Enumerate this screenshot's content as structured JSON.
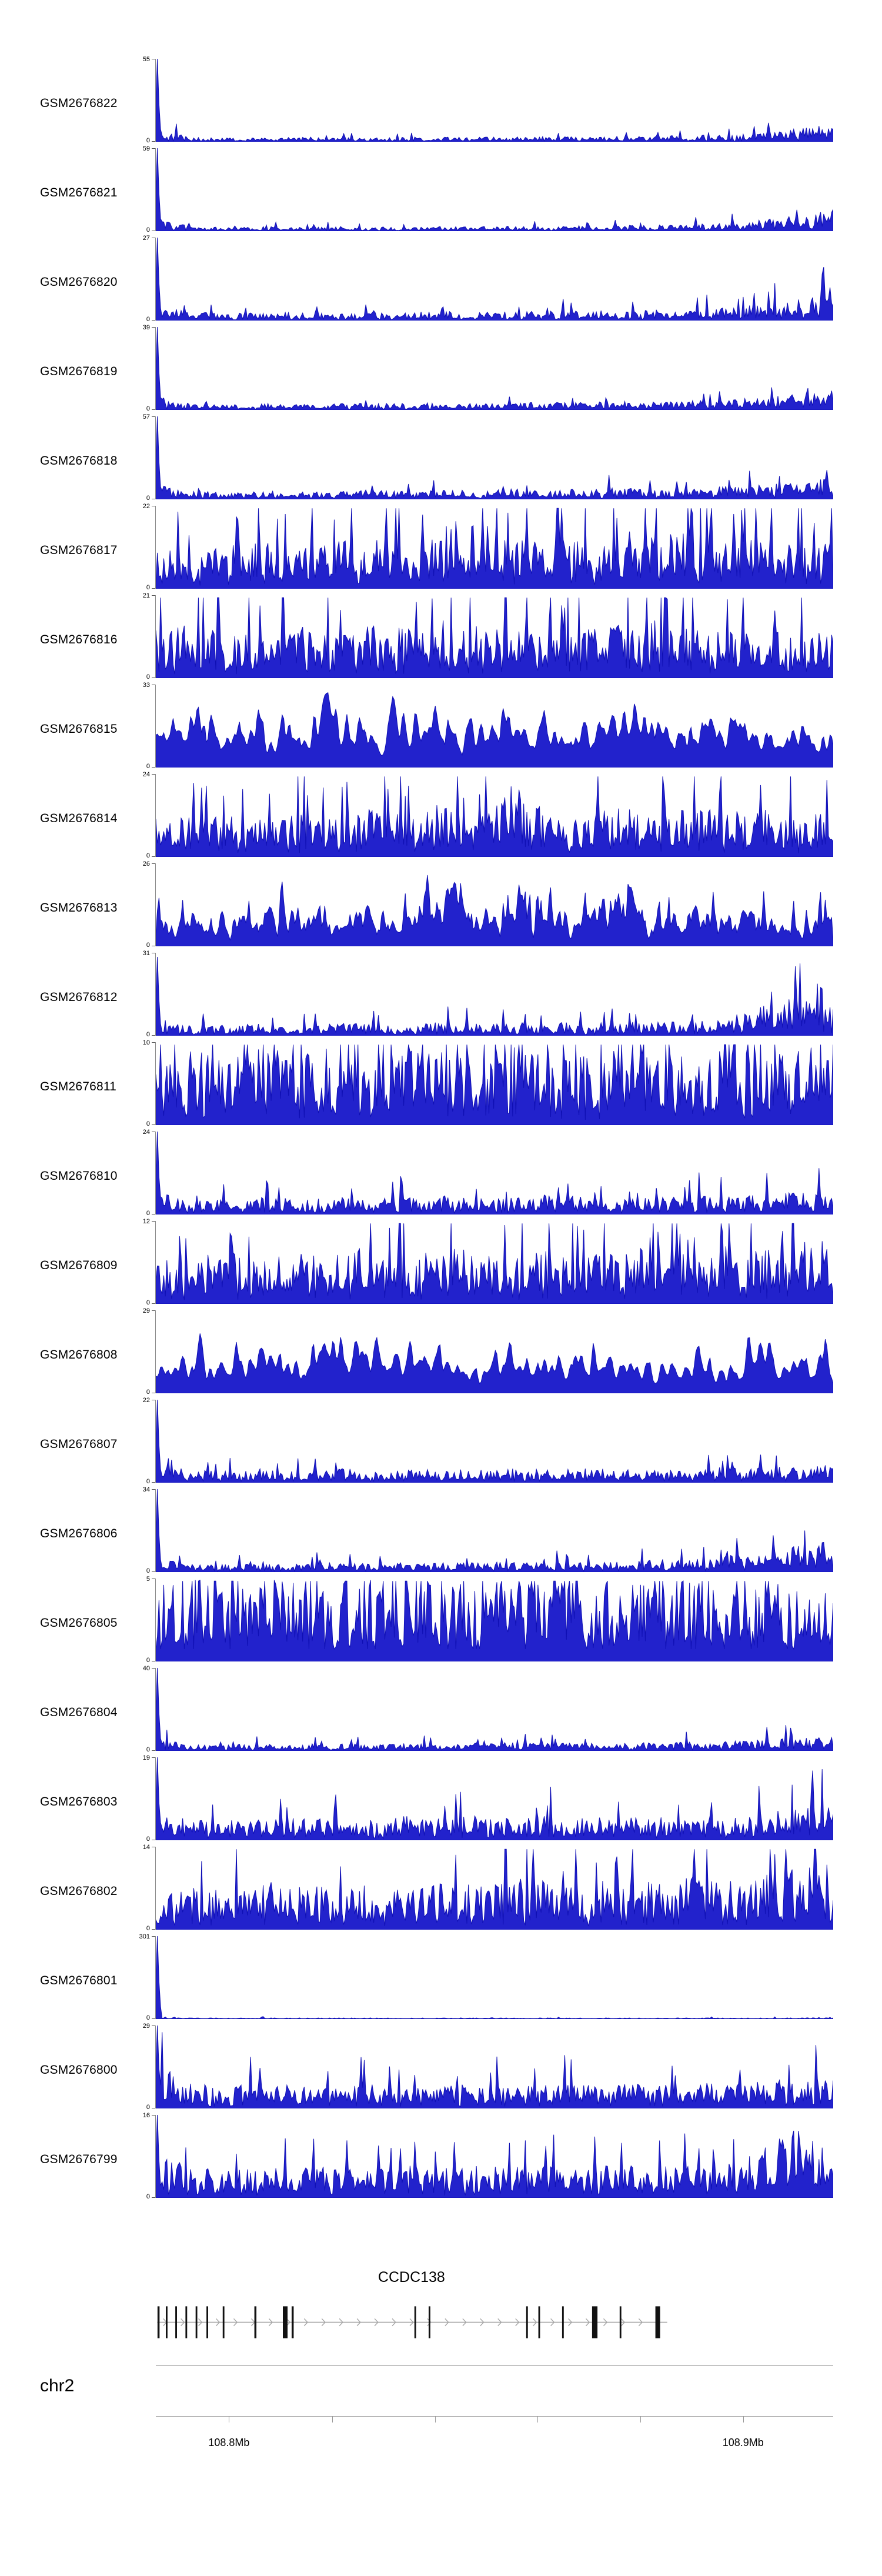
{
  "page": {
    "background": "#ffffff"
  },
  "chart_data": {
    "type": "area",
    "title": "",
    "layout": {
      "legend": "none",
      "grid": false
    },
    "track_color": "#2222cc",
    "track_stroke": "#0f0fb4",
    "y_zero_label": "0",
    "tracks": [
      {
        "label": "GSM2676822",
        "ymax": 55,
        "ymin": 0,
        "seed": 101,
        "left_spike": 1,
        "spike_prob": 0.05,
        "smooth": 0,
        "floor": 0.008,
        "envelope": [
          0.14,
          0.05,
          0.04,
          0.04,
          0.05,
          0.05,
          0.04,
          0.05,
          0.05,
          0.05,
          0.05,
          0.06,
          0.05,
          0.06,
          0.06,
          0.07,
          0.08,
          0.1,
          0.14,
          0.19
        ]
      },
      {
        "label": "GSM2676821",
        "ymax": 59,
        "ymin": 0,
        "seed": 102,
        "left_spike": 1,
        "spike_prob": 0.05,
        "smooth": 0,
        "floor": 0.008,
        "envelope": [
          0.13,
          0.05,
          0.04,
          0.05,
          0.04,
          0.05,
          0.05,
          0.04,
          0.05,
          0.05,
          0.06,
          0.05,
          0.06,
          0.06,
          0.07,
          0.07,
          0.09,
          0.12,
          0.17,
          0.23
        ]
      },
      {
        "label": "GSM2676820",
        "ymax": 27,
        "ymin": 0,
        "seed": 103,
        "left_spike": 1,
        "spike_prob": 0.06,
        "smooth": 0,
        "floor": 0.01,
        "envelope": [
          0.18,
          0.09,
          0.08,
          0.08,
          0.09,
          0.09,
          0.08,
          0.09,
          0.1,
          0.09,
          0.1,
          0.1,
          0.11,
          0.1,
          0.11,
          0.12,
          0.14,
          0.17,
          0.22,
          0.28
        ]
      },
      {
        "label": "GSM2676819",
        "ymax": 39,
        "ymin": 0,
        "seed": 104,
        "left_spike": 1,
        "spike_prob": 0.05,
        "smooth": 0,
        "floor": 0.008,
        "envelope": [
          0.15,
          0.07,
          0.06,
          0.07,
          0.06,
          0.07,
          0.07,
          0.07,
          0.08,
          0.07,
          0.08,
          0.08,
          0.08,
          0.09,
          0.09,
          0.1,
          0.11,
          0.13,
          0.17,
          0.21
        ]
      },
      {
        "label": "GSM2676818",
        "ymax": 57,
        "ymin": 0,
        "seed": 105,
        "left_spike": 1,
        "spike_prob": 0.06,
        "smooth": 0,
        "floor": 0.01,
        "envelope": [
          0.16,
          0.09,
          0.08,
          0.09,
          0.08,
          0.09,
          0.1,
          0.09,
          0.1,
          0.1,
          0.11,
          0.1,
          0.11,
          0.12,
          0.11,
          0.12,
          0.14,
          0.16,
          0.19,
          0.23
        ]
      },
      {
        "label": "GSM2676817",
        "ymax": 22,
        "ymin": 0,
        "seed": 106,
        "left_spike": 0,
        "spike_prob": 0.1,
        "smooth": 0,
        "floor": 0.02,
        "envelope": [
          0.45,
          0.4,
          0.46,
          0.5,
          0.42,
          0.5,
          0.56,
          0.46,
          0.62,
          0.88,
          0.56,
          0.66,
          0.5,
          0.46,
          0.56,
          0.6,
          0.5,
          0.56,
          0.5,
          0.56
        ]
      },
      {
        "label": "GSM2676816",
        "ymax": 21,
        "ymin": 0,
        "seed": 107,
        "left_spike": 0,
        "spike_prob": 0.1,
        "smooth": 0,
        "floor": 0.02,
        "envelope": [
          0.52,
          0.56,
          0.46,
          0.52,
          0.62,
          0.46,
          0.56,
          0.52,
          0.46,
          0.56,
          0.52,
          0.62,
          0.52,
          0.56,
          0.66,
          0.52,
          0.56,
          0.46,
          0.56,
          0.52
        ]
      },
      {
        "label": "GSM2676815",
        "ymax": 33,
        "ymin": 0,
        "seed": 108,
        "left_spike": 0,
        "spike_prob": 0.08,
        "smooth": 2,
        "floor": 0.05,
        "envelope": [
          0.62,
          0.72,
          0.56,
          0.66,
          0.62,
          0.76,
          0.62,
          0.56,
          0.66,
          0.62,
          0.72,
          0.62,
          0.66,
          0.56,
          0.72,
          0.62,
          0.66,
          0.62,
          0.56,
          0.62
        ]
      },
      {
        "label": "GSM2676814",
        "ymax": 24,
        "ymin": 0,
        "seed": 109,
        "left_spike": 0,
        "spike_prob": 0.08,
        "smooth": 0,
        "floor": 0.02,
        "envelope": [
          0.42,
          0.46,
          0.42,
          0.52,
          0.46,
          0.42,
          0.52,
          0.46,
          0.56,
          0.46,
          0.85,
          0.52,
          0.46,
          0.52,
          0.46,
          0.56,
          0.46,
          0.52,
          0.46,
          0.52
        ]
      },
      {
        "label": "GSM2676813",
        "ymax": 26,
        "ymin": 0,
        "seed": 110,
        "left_spike": 0,
        "spike_prob": 0.09,
        "smooth": 1,
        "floor": 0.04,
        "envelope": [
          0.38,
          0.42,
          0.46,
          0.42,
          0.52,
          0.42,
          0.46,
          0.42,
          0.88,
          0.46,
          0.42,
          0.52,
          0.46,
          0.76,
          0.42,
          0.46,
          0.42,
          0.46,
          0.42,
          0.46
        ]
      },
      {
        "label": "GSM2676812",
        "ymax": 31,
        "ymin": 0,
        "seed": 111,
        "left_spike": 0.95,
        "spike_prob": 0.06,
        "smooth": 0,
        "floor": 0.012,
        "envelope": [
          0.2,
          0.11,
          0.11,
          0.13,
          0.11,
          0.13,
          0.13,
          0.11,
          0.15,
          0.13,
          0.13,
          0.15,
          0.13,
          0.15,
          0.14,
          0.16,
          0.19,
          0.32,
          0.42,
          0.3
        ]
      },
      {
        "label": "GSM2676811",
        "ymax": 10,
        "ymin": 0,
        "seed": 112,
        "left_spike": 0,
        "spike_prob": 0.12,
        "smooth": 0,
        "floor": 0.06,
        "envelope": [
          0.76,
          0.82,
          0.72,
          0.86,
          0.76,
          0.82,
          0.72,
          0.76,
          0.86,
          0.72,
          0.82,
          0.76,
          0.72,
          0.82,
          0.76,
          0.72,
          0.82,
          0.78,
          0.86,
          0.92
        ]
      },
      {
        "label": "GSM2676810",
        "ymax": 24,
        "ymin": 0,
        "seed": 113,
        "left_spike": 1,
        "spike_prob": 0.06,
        "smooth": 0,
        "floor": 0.015,
        "envelope": [
          0.24,
          0.16,
          0.16,
          0.19,
          0.16,
          0.19,
          0.16,
          0.19,
          0.21,
          0.16,
          0.19,
          0.21,
          0.19,
          0.16,
          0.19,
          0.21,
          0.19,
          0.21,
          0.23,
          0.26
        ]
      },
      {
        "label": "GSM2676809",
        "ymax": 12,
        "ymin": 0,
        "seed": 114,
        "left_spike": 0,
        "spike_prob": 0.1,
        "smooth": 0,
        "floor": 0.03,
        "envelope": [
          0.46,
          0.52,
          0.56,
          0.46,
          0.56,
          0.52,
          0.62,
          0.52,
          0.56,
          0.62,
          0.52,
          0.56,
          0.52,
          0.62,
          0.56,
          0.52,
          0.62,
          0.56,
          0.66,
          0.72
        ]
      },
      {
        "label": "GSM2676808",
        "ymax": 29,
        "ymin": 0,
        "seed": 115,
        "left_spike": 0,
        "spike_prob": 0.08,
        "smooth": 2,
        "floor": 0.04,
        "envelope": [
          0.42,
          0.52,
          0.46,
          0.56,
          0.52,
          0.56,
          0.46,
          0.56,
          0.52,
          0.46,
          0.56,
          0.52,
          0.56,
          0.46,
          0.52,
          0.42,
          0.36,
          0.76,
          0.56,
          0.46
        ]
      },
      {
        "label": "GSM2676807",
        "ymax": 22,
        "ymin": 0,
        "seed": 116,
        "left_spike": 1,
        "spike_prob": 0.05,
        "smooth": 0,
        "floor": 0.012,
        "envelope": [
          0.2,
          0.13,
          0.13,
          0.15,
          0.13,
          0.15,
          0.14,
          0.13,
          0.16,
          0.14,
          0.15,
          0.14,
          0.16,
          0.15,
          0.16,
          0.15,
          0.17,
          0.16,
          0.18,
          0.19
        ]
      },
      {
        "label": "GSM2676806",
        "ymax": 34,
        "ymin": 0,
        "seed": 117,
        "left_spike": 1,
        "spike_prob": 0.05,
        "smooth": 0,
        "floor": 0.01,
        "envelope": [
          0.15,
          0.09,
          0.08,
          0.09,
          0.09,
          0.1,
          0.09,
          0.1,
          0.1,
          0.1,
          0.11,
          0.1,
          0.12,
          0.11,
          0.13,
          0.15,
          0.17,
          0.22,
          0.28,
          0.33
        ]
      },
      {
        "label": "GSM2676805",
        "ymax": 5,
        "ymin": 0,
        "seed": 118,
        "left_spike": 0,
        "spike_prob": 0.12,
        "smooth": 0,
        "floor": 0.15,
        "envelope": [
          0.82,
          0.88,
          0.82,
          0.88,
          0.85,
          0.82,
          0.88,
          0.85,
          0.82,
          0.88,
          0.82,
          0.85,
          0.88,
          0.82,
          0.85,
          0.88,
          0.82,
          0.85,
          0.82,
          0.88
        ]
      },
      {
        "label": "GSM2676804",
        "ymax": 40,
        "ymin": 0,
        "seed": 119,
        "left_spike": 1,
        "spike_prob": 0.05,
        "smooth": 0,
        "floor": 0.008,
        "envelope": [
          0.13,
          0.07,
          0.07,
          0.07,
          0.07,
          0.08,
          0.07,
          0.08,
          0.07,
          0.08,
          0.09,
          0.08,
          0.09,
          0.08,
          0.09,
          0.1,
          0.1,
          0.12,
          0.13,
          0.16
        ]
      },
      {
        "label": "GSM2676803",
        "ymax": 19,
        "ymin": 0,
        "seed": 120,
        "left_spike": 1,
        "spike_prob": 0.06,
        "smooth": 0,
        "floor": 0.02,
        "envelope": [
          0.3,
          0.21,
          0.23,
          0.21,
          0.26,
          0.23,
          0.21,
          0.26,
          0.23,
          0.26,
          0.23,
          0.26,
          0.25,
          0.23,
          0.26,
          0.25,
          0.27,
          0.29,
          0.33,
          0.36
        ]
      },
      {
        "label": "GSM2676802",
        "ymax": 14,
        "ymin": 0,
        "seed": 121,
        "left_spike": 0,
        "spike_prob": 0.09,
        "smooth": 0,
        "floor": 0.03,
        "envelope": [
          0.42,
          0.46,
          0.42,
          0.52,
          0.46,
          0.52,
          0.46,
          0.42,
          0.52,
          0.46,
          0.56,
          0.52,
          0.46,
          0.56,
          0.52,
          0.56,
          0.52,
          0.62,
          0.66,
          0.72
        ]
      },
      {
        "label": "GSM2676801",
        "ymax": 301,
        "ymin": 0,
        "seed": 122,
        "left_spike": 1,
        "spike_prob": 0.02,
        "smooth": 0,
        "floor": 0.006,
        "envelope": [
          0.03,
          0.012,
          0.012,
          0.012,
          0.012,
          0.012,
          0.012,
          0.012,
          0.012,
          0.012,
          0.012,
          0.012,
          0.012,
          0.012,
          0.012,
          0.012,
          0.012,
          0.012,
          0.012,
          0.02
        ]
      },
      {
        "label": "GSM2676800",
        "ymax": 29,
        "ymin": 0,
        "seed": 123,
        "left_spike": 1,
        "spike_prob": 0.07,
        "smooth": 0,
        "floor": 0.02,
        "envelope": [
          0.48,
          0.3,
          0.24,
          0.26,
          0.24,
          0.26,
          0.25,
          0.24,
          0.27,
          0.25,
          0.26,
          0.25,
          0.27,
          0.26,
          0.25,
          0.27,
          0.26,
          0.29,
          0.31,
          0.33
        ]
      },
      {
        "label": "GSM2676799",
        "ymax": 16,
        "ymin": 0,
        "seed": 124,
        "left_spike": 1,
        "spike_prob": 0.08,
        "smooth": 0,
        "floor": 0.02,
        "envelope": [
          0.48,
          0.32,
          0.32,
          0.3,
          0.34,
          0.32,
          0.3,
          0.34,
          0.32,
          0.34,
          0.32,
          0.34,
          0.32,
          0.36,
          0.34,
          0.36,
          0.38,
          0.58,
          0.72,
          0.55
        ]
      }
    ],
    "gene_track": {
      "name": "CCDC138",
      "line_end": 0.755,
      "strand": "+",
      "exons": [
        {
          "pos": 0.004,
          "w": 3
        },
        {
          "pos": 0.016,
          "w": 2.5
        },
        {
          "pos": 0.03,
          "w": 2.5
        },
        {
          "pos": 0.045,
          "w": 2.5
        },
        {
          "pos": 0.06,
          "w": 2.5
        },
        {
          "pos": 0.076,
          "w": 2.5
        },
        {
          "pos": 0.1,
          "w": 2.5
        },
        {
          "pos": 0.147,
          "w": 3
        },
        {
          "pos": 0.191,
          "w": 7
        },
        {
          "pos": 0.202,
          "w": 3
        },
        {
          "pos": 0.383,
          "w": 2.5
        },
        {
          "pos": 0.404,
          "w": 2.5
        },
        {
          "pos": 0.548,
          "w": 2.5
        },
        {
          "pos": 0.566,
          "w": 2.5
        },
        {
          "pos": 0.601,
          "w": 2.5
        },
        {
          "pos": 0.648,
          "w": 8
        },
        {
          "pos": 0.686,
          "w": 2.5
        },
        {
          "pos": 0.741,
          "w": 7
        }
      ]
    },
    "axis": {
      "chrom": "chr2",
      "ticks": [
        {
          "pos": 0.108,
          "label": "108.8Mb"
        },
        {
          "pos": 0.26,
          "label": ""
        },
        {
          "pos": 0.412,
          "label": ""
        },
        {
          "pos": 0.563,
          "label": ""
        },
        {
          "pos": 0.715,
          "label": ""
        },
        {
          "pos": 0.867,
          "label": "108.9Mb"
        }
      ]
    }
  }
}
